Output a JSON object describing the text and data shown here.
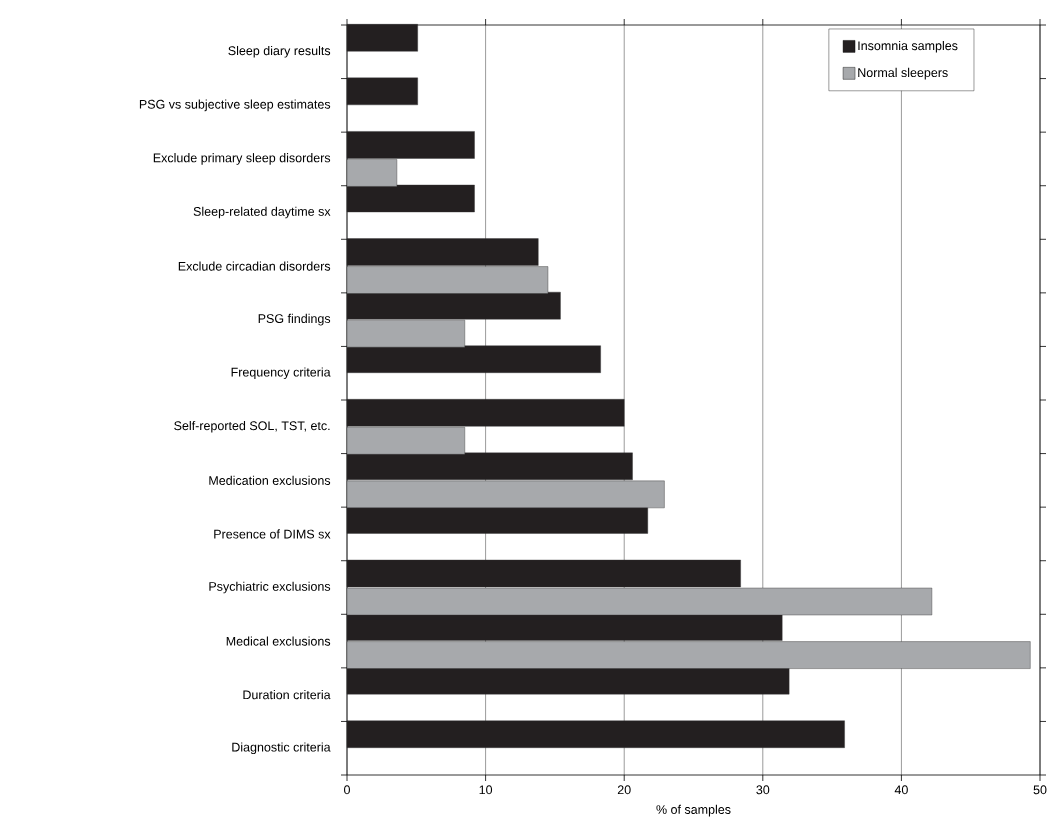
{
  "chart_data": {
    "type": "bar",
    "orientation": "horizontal",
    "xlabel": "% of samples",
    "categories": [
      "Sleep diary results",
      "PSG vs subjective sleep estimates",
      "Exclude primary sleep disorders",
      "Sleep-related daytime sx",
      "Exclude circadian disorders",
      "PSG findings",
      "Frequency criteria",
      "Self-reported SOL, TST, etc.",
      "Medication exclusions",
      "Presence of DIMS sx",
      "Psychiatric exclusions",
      "Medical exclusions",
      "Duration criteria",
      "Diagnostic criteria"
    ],
    "series": [
      {
        "name": "Insomnia samples",
        "color": "#231f20",
        "values": [
          5.1,
          5.1,
          9.2,
          9.2,
          13.8,
          15.4,
          18.3,
          20.0,
          20.6,
          21.7,
          28.4,
          31.4,
          31.9,
          35.9
        ]
      },
      {
        "name": "Normal sleepers",
        "color": "#a7a9ac",
        "values": [
          null,
          null,
          3.6,
          null,
          14.5,
          8.5,
          null,
          8.5,
          22.9,
          null,
          42.2,
          49.3,
          null,
          null
        ]
      }
    ],
    "xlim": [
      0,
      50
    ],
    "xticks": [
      0,
      10,
      20,
      30,
      40,
      50
    ],
    "grid": "x",
    "legend": "top right"
  }
}
